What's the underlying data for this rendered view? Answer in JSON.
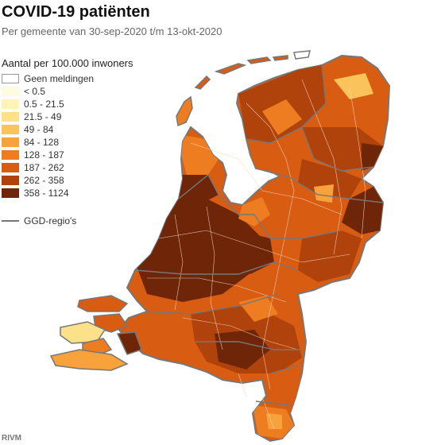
{
  "header": {
    "title": "COVID-19 patiënten",
    "subtitle": "Per gemeente van 30-sep-2020 t/m 13-okt-2020"
  },
  "legend": {
    "title": "Aantal per 100.000 inwoners",
    "items": [
      {
        "label": "Geen meldingen",
        "color": "#ffffff"
      },
      {
        "label": "< 0.5",
        "color": "#fffbe0"
      },
      {
        "label": "0.5 - 21.5",
        "color": "#fff3b8"
      },
      {
        "label": "21.5 - 49",
        "color": "#fde08a"
      },
      {
        "label": "49 - 84",
        "color": "#fbc45b"
      },
      {
        "label": "84 - 128",
        "color": "#f7a23a"
      },
      {
        "label": "128 - 187",
        "color": "#ee7d22"
      },
      {
        "label": "187 - 262",
        "color": "#d85d12"
      },
      {
        "label": "262 - 358",
        "color": "#b0420b"
      },
      {
        "label": "358 - 1124",
        "color": "#6e2508"
      }
    ],
    "ggd_label": "GGD-regio's",
    "ggd_color": "#777777"
  },
  "source": "RIVM"
}
